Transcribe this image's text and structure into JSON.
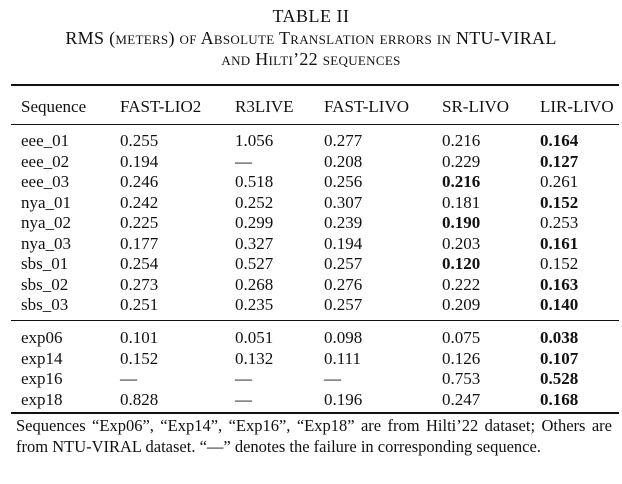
{
  "table_label": "TABLE II",
  "caption_line1": "RMS (meters) of Absolute Translation errors in NTU-VIRAL",
  "caption_line2": "and Hilti’22 sequences",
  "columns": [
    "Sequence",
    "FAST-LIO2",
    "R3LIVE",
    "FAST-LIVO",
    "SR-LIVO",
    "LIR-LIVO"
  ],
  "group1": [
    {
      "seq": "eee_01",
      "vals": [
        "0.255",
        "1.056",
        "0.277",
        "0.216",
        "0.164"
      ],
      "best": 4
    },
    {
      "seq": "eee_02",
      "vals": [
        "0.194",
        "—",
        "0.208",
        "0.229",
        "0.127"
      ],
      "best": 4
    },
    {
      "seq": "eee_03",
      "vals": [
        "0.246",
        "0.518",
        "0.256",
        "0.216",
        "0.261"
      ],
      "best": 3
    },
    {
      "seq": "nya_01",
      "vals": [
        "0.242",
        "0.252",
        "0.307",
        "0.181",
        "0.152"
      ],
      "best": 4
    },
    {
      "seq": "nya_02",
      "vals": [
        "0.225",
        "0.299",
        "0.239",
        "0.190",
        "0.253"
      ],
      "best": 3
    },
    {
      "seq": "nya_03",
      "vals": [
        "0.177",
        "0.327",
        "0.194",
        "0.203",
        "0.161"
      ],
      "best": 4
    },
    {
      "seq": "sbs_01",
      "vals": [
        "0.254",
        "0.527",
        "0.257",
        "0.120",
        "0.152"
      ],
      "best": 3
    },
    {
      "seq": "sbs_02",
      "vals": [
        "0.273",
        "0.268",
        "0.276",
        "0.222",
        "0.163"
      ],
      "best": 4
    },
    {
      "seq": "sbs_03",
      "vals": [
        "0.251",
        "0.235",
        "0.257",
        "0.209",
        "0.140"
      ],
      "best": 4
    }
  ],
  "group2": [
    {
      "seq": "exp06",
      "vals": [
        "0.101",
        "0.051",
        "0.098",
        "0.075",
        "0.038"
      ],
      "best": 4
    },
    {
      "seq": "exp14",
      "vals": [
        "0.152",
        "0.132",
        "0.111",
        "0.126",
        "0.107"
      ],
      "best": 4
    },
    {
      "seq": "exp16",
      "vals": [
        "—",
        "—",
        "—",
        "0.753",
        "0.528"
      ],
      "best": 4
    },
    {
      "seq": "exp18",
      "vals": [
        "0.828",
        "—",
        "0.196",
        "0.247",
        "0.168"
      ],
      "best": 4
    }
  ],
  "footnote": "Sequences “Exp06”, “Exp14”, “Exp16”, “Exp18” are from Hilti’22 dataset; Others are from NTU-VIRAL dataset. “—” denotes the failure in corresponding sequence."
}
